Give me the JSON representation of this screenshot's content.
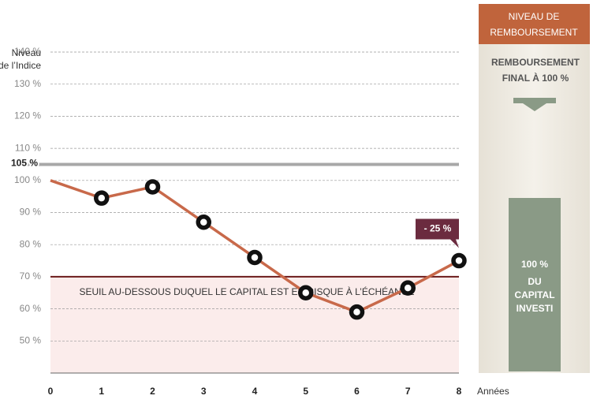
{
  "chart_data": {
    "type": "line",
    "y_label": [
      "Niveau",
      "de l’Indice"
    ],
    "x_label": "Années",
    "x": [
      0,
      1,
      2,
      3,
      4,
      5,
      6,
      7,
      8
    ],
    "series": [
      {
        "color": "#c8694a",
        "values": [
          100,
          94.5,
          98,
          87,
          76,
          65,
          59,
          66.5,
          75
        ]
      }
    ],
    "xlim": [
      0,
      8
    ],
    "xticks": [
      0,
      1,
      2,
      3,
      4,
      5,
      6,
      7,
      8
    ],
    "ylim": [
      40,
      140
    ],
    "yticks": [
      {
        "value": 50,
        "label": "50 %"
      },
      {
        "value": 60,
        "label": "60 %"
      },
      {
        "value": 70,
        "label": "70 %"
      },
      {
        "value": 80,
        "label": "80 %"
      },
      {
        "value": 90,
        "label": "90 %"
      },
      {
        "value": 100,
        "label": "100 %"
      },
      {
        "value": 110,
        "label": "110 %"
      },
      {
        "value": 120,
        "label": "120 %"
      },
      {
        "value": 130,
        "label": "130 %"
      },
      {
        "value": 140,
        "label": "140 %"
      }
    ],
    "grid": true,
    "reference_lines": [
      {
        "value": 105,
        "label": "105 %",
        "color": "#a8a8a8"
      },
      {
        "value": 70,
        "color": "#6b1a1a",
        "text": "SEUIL AU-DESSOUS DUQUEL LE CAPITAL EST EN RISQUE À L’ÉCHÉANCE"
      }
    ],
    "annotation": {
      "text": "- 25 %",
      "color": "#6b2b3f"
    },
    "panel": {
      "header": [
        "NIVEAU DE",
        "REMBOURSEMENT"
      ],
      "subtitle": [
        "REMBOURSEMENT",
        "FINAL À 100 %"
      ],
      "bar": {
        "value": 100,
        "color": "#8a9a86",
        "label": [
          "100 %",
          "DU",
          "CAPITAL",
          "INVESTI"
        ]
      }
    }
  }
}
